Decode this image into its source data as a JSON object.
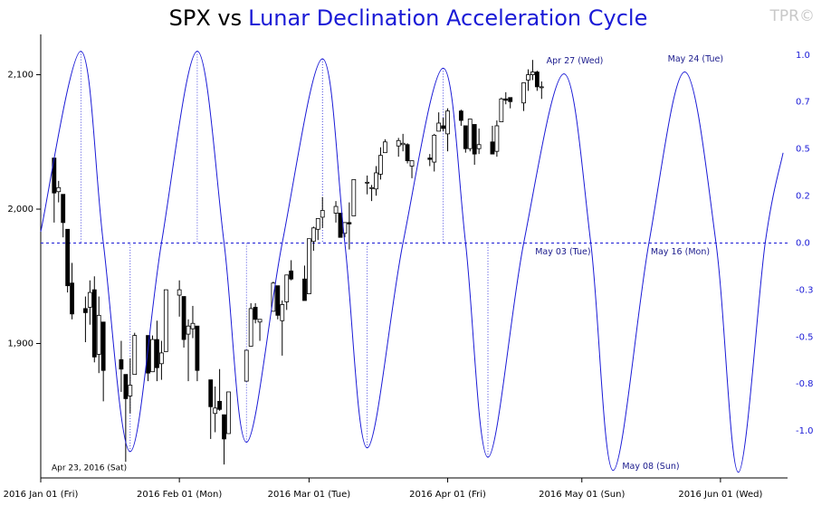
{
  "chart_data": {
    "type": "candlestick",
    "title": "SPX vs",
    "title_highlight": "Lunar Declination Acceleration Cycle",
    "title_highlight_color": "#1a1ad6",
    "watermark": "TPR©",
    "note": "Apr 23, 2016 (Sat)",
    "up_color": "#ffffff",
    "down_color": "#000000",
    "x": [
      "2016-01-04",
      "2016-01-05",
      "2016-01-06",
      "2016-01-07",
      "2016-01-08",
      "2016-01-11",
      "2016-01-12",
      "2016-01-13",
      "2016-01-14",
      "2016-01-15",
      "2016-01-19",
      "2016-01-20",
      "2016-01-21",
      "2016-01-22",
      "2016-01-25",
      "2016-01-26",
      "2016-01-27",
      "2016-01-28",
      "2016-01-29",
      "2016-02-01",
      "2016-02-02",
      "2016-02-03",
      "2016-02-04",
      "2016-02-05",
      "2016-02-08",
      "2016-02-09",
      "2016-02-10",
      "2016-02-11",
      "2016-02-12",
      "2016-02-16",
      "2016-02-17",
      "2016-02-18",
      "2016-02-19",
      "2016-02-22",
      "2016-02-23",
      "2016-02-24",
      "2016-02-25",
      "2016-02-26",
      "2016-02-29",
      "2016-03-01",
      "2016-03-02",
      "2016-03-03",
      "2016-03-04",
      "2016-03-07",
      "2016-03-08",
      "2016-03-09",
      "2016-03-10",
      "2016-03-11",
      "2016-03-14",
      "2016-03-15",
      "2016-03-16",
      "2016-03-17",
      "2016-03-18",
      "2016-03-21",
      "2016-03-22",
      "2016-03-23",
      "2016-03-24",
      "2016-03-28",
      "2016-03-29",
      "2016-03-30",
      "2016-03-31",
      "2016-04-01",
      "2016-04-04",
      "2016-04-05",
      "2016-04-06",
      "2016-04-07",
      "2016-04-08",
      "2016-04-11",
      "2016-04-12",
      "2016-04-13",
      "2016-04-14",
      "2016-04-15",
      "2016-04-18",
      "2016-04-19",
      "2016-04-20",
      "2016-04-21",
      "2016-04-22"
    ],
    "open": [
      2038,
      2013,
      2011,
      1985,
      1945,
      1926,
      1927,
      1940,
      1892,
      1916,
      1888,
      1877,
      1861,
      1877,
      1906,
      1879,
      1903,
      1885,
      1894,
      1936,
      1935,
      1907,
      1911,
      1913,
      1873,
      1848,
      1857,
      1847,
      1833,
      1872,
      1898,
      1927,
      1916,
      1924,
      1943,
      1917,
      1931,
      1954,
      1948,
      1937,
      1976,
      1985,
      1994,
      1997,
      1997,
      1982,
      1990,
      1995,
      2020,
      2016,
      2015,
      2026,
      2042,
      2047,
      2048,
      2048,
      2032,
      2038,
      2035,
      2058,
      2062,
      2056,
      2073,
      2062,
      2045,
      2063,
      2045,
      2050,
      2043,
      2065,
      2082,
      2083,
      2079,
      2096,
      2100,
      2102,
      2091
    ],
    "high": [
      2038,
      2021,
      2011,
      1985,
      1960,
      1935,
      1947,
      1950,
      1935,
      1916,
      1902,
      1877,
      1889,
      1908,
      1906,
      1906,
      1917,
      1902,
      1940,
      1947,
      1935,
      1918,
      1928,
      1913,
      1873,
      1868,
      1881,
      1847,
      1864,
      1895,
      1930,
      1930,
      1918,
      1946,
      1943,
      1932,
      1951,
      1962,
      1958,
      1978,
      1987,
      1993,
      2009,
      2006,
      1997,
      1990,
      2005,
      2022,
      2025,
      2018,
      2032,
      2046,
      2052,
      2053,
      2056,
      2049,
      2036,
      2041,
      2056,
      2072,
      2068,
      2075,
      2074,
      2062,
      2067,
      2063,
      2060,
      2062,
      2066,
      2083,
      2087,
      2083,
      2094,
      2104,
      2111,
      2103,
      2095
    ],
    "low": [
      1990,
      2005,
      1979,
      1938,
      1918,
      1901,
      1914,
      1886,
      1878,
      1857,
      1864,
      1812,
      1848,
      1877,
      1872,
      1879,
      1872,
      1873,
      1894,
      1920,
      1897,
      1872,
      1904,
      1872,
      1829,
      1834,
      1850,
      1810,
      1833,
      1872,
      1898,
      1915,
      1902,
      1924,
      1918,
      1891,
      1925,
      1947,
      1932,
      1937,
      1969,
      1977,
      1986,
      1990,
      1979,
      1979,
      1970,
      1995,
      2011,
      2006,
      2010,
      2022,
      2042,
      2039,
      2043,
      2034,
      2023,
      2032,
      2028,
      2058,
      2058,
      2043,
      2062,
      2042,
      2043,
      2033,
      2041,
      2041,
      2039,
      2065,
      2078,
      2075,
      2073,
      2088,
      2096,
      2088,
      2082
    ],
    "close": [
      2012,
      2016,
      1990,
      1943,
      1922,
      1923,
      1938,
      1890,
      1921,
      1880,
      1881,
      1859,
      1869,
      1906,
      1878,
      1903,
      1882,
      1893,
      1940,
      1940,
      1903,
      1913,
      1915,
      1880,
      1853,
      1852,
      1851,
      1829,
      1864,
      1895,
      1926,
      1918,
      1918,
      1945,
      1921,
      1929,
      1951,
      1948,
      1932,
      1978,
      1986,
      1993,
      1999,
      2002,
      1979,
      1990,
      1989,
      2022,
      2020,
      2016,
      2027,
      2040,
      2050,
      2051,
      2049,
      2036,
      2036,
      2037,
      2055,
      2064,
      2060,
      2073,
      2066,
      2045,
      2067,
      2041,
      2048,
      2041,
      2062,
      2082,
      2081,
      2080,
      2094,
      2100,
      2102,
      2091,
      2091
    ],
    "cycle": {
      "color": "#1a1ad6",
      "axis": "y2",
      "x": [
        "2016-01-01",
        "2016-01-10",
        "2016-01-15",
        "2016-01-21",
        "2016-01-28",
        "2016-02-05",
        "2016-02-11",
        "2016-02-16",
        "2016-02-24",
        "2016-03-04",
        "2016-03-09",
        "2016-03-14",
        "2016-03-22",
        "2016-03-31",
        "2016-04-05",
        "2016-04-10",
        "2016-04-18",
        "2016-04-27",
        "2016-05-03",
        "2016-05-08",
        "2016-05-16",
        "2016-05-24",
        "2016-05-31",
        "2016-06-05",
        "2016-06-11",
        "2016-06-15"
      ],
      "values": [
        0.06,
        1.02,
        0,
        -1.11,
        0,
        1.02,
        0,
        -1.06,
        0,
        0.98,
        0,
        -1.09,
        0,
        0.93,
        0,
        -1.14,
        0,
        0.9,
        0,
        -1.21,
        0,
        0.91,
        0,
        -1.22,
        0,
        0.48
      ]
    },
    "reference_y2": 0,
    "annotations": [
      {
        "text": "Apr 27 (Wed)",
        "x": "2016-04-27"
      },
      {
        "text": "May 03 (Tue)",
        "x": "2016-05-03"
      },
      {
        "text": "May 08 (Sun)",
        "x": "2016-05-08"
      },
      {
        "text": "May 16 (Mon)",
        "x": "2016-05-16"
      },
      {
        "text": "May 24 (Tue)",
        "x": "2016-05-24"
      }
    ],
    "xlim": [
      "2016-01-01",
      "2016-06-16"
    ],
    "xticks": [
      {
        "value": "2016-01-01",
        "label": "2016 Jan 01 (Fri)"
      },
      {
        "value": "2016-02-01",
        "label": "2016 Feb 01 (Mon)"
      },
      {
        "value": "2016-03-01",
        "label": "2016 Mar 01 (Tue)"
      },
      {
        "value": "2016-04-01",
        "label": "2016 Apr 01 (Fri)"
      },
      {
        "value": "2016-05-01",
        "label": "2016 May 01 (Sun)"
      },
      {
        "value": "2016-06-01",
        "label": "2016 Jun 01 (Wed)"
      }
    ],
    "ylim": [
      1800,
      2130
    ],
    "yticks": [
      {
        "value": 1900,
        "label": "1,900"
      },
      {
        "value": 2000,
        "label": "2,000"
      },
      {
        "value": 2100,
        "label": "2,100"
      }
    ],
    "y2lim": [
      -1.25,
      1.11
    ],
    "y2ticks": [
      {
        "value": 1,
        "label": "1.0"
      },
      {
        "value": 0.75,
        "label": "0.7"
      },
      {
        "value": 0.5,
        "label": "0.5"
      },
      {
        "value": 0.25,
        "label": "0.2"
      },
      {
        "value": 0,
        "label": "0.0"
      },
      {
        "value": -0.25,
        "label": "-0.3"
      },
      {
        "value": -0.5,
        "label": "-0.5"
      },
      {
        "value": -0.75,
        "label": "-0.8"
      },
      {
        "value": -1,
        "label": "-1.0"
      }
    ]
  }
}
